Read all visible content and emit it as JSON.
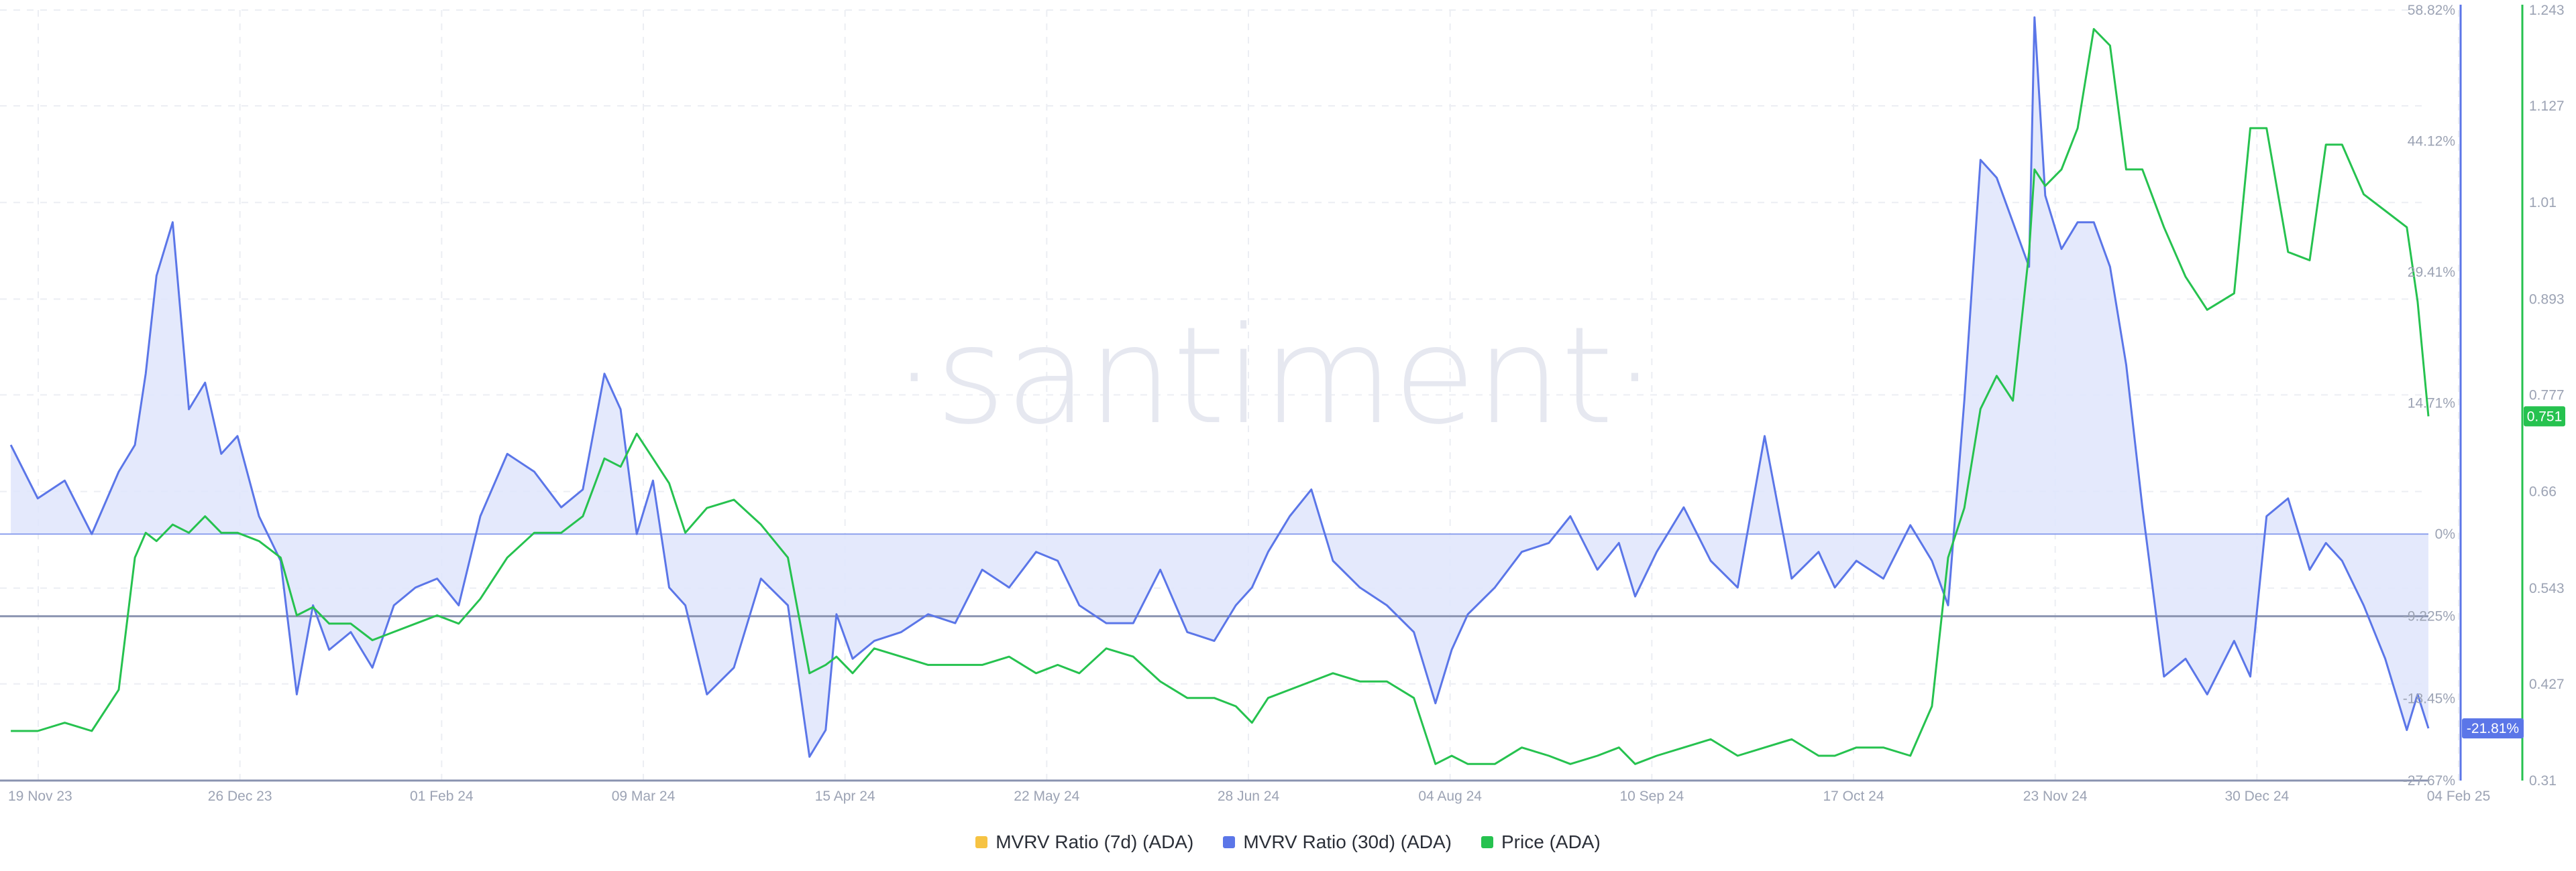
{
  "chart_data": {
    "type": "line",
    "watermark": "·santiment·",
    "x_ticks": [
      "19 Nov 23",
      "26 Dec 23",
      "01 Feb 24",
      "09 Mar 24",
      "15 Apr 24",
      "22 May 24",
      "28 Jun 24",
      "04 Aug 24",
      "10 Sep 24",
      "17 Oct 24",
      "23 Nov 24",
      "30 Dec 24",
      "04 Feb 25"
    ],
    "y_left": {
      "unit": "%",
      "ylim": [
        -27.67,
        58.82
      ],
      "ticks": [
        "58.82%",
        "44.12%",
        "29.41%",
        "14.71%",
        "0%",
        "-9.225%",
        "-18.45%",
        "-27.67%"
      ],
      "reference_lines": [
        -9.225,
        -27.67
      ]
    },
    "y_right": {
      "ylim": [
        0.31,
        1.243
      ],
      "ticks": [
        "1.243",
        "1.127",
        "1.01",
        "0.893",
        "0.777",
        "0.66",
        "0.543",
        "0.427",
        "0.31"
      ]
    },
    "badges": {
      "mvrv_current": "-21.81%",
      "price_current": "0.751"
    },
    "colors": {
      "mvrv7d": "#f6c343",
      "mvrv30d": "#5b76e8",
      "mvrv30d_fill": "#dfe5fb",
      "price": "#26c24f"
    },
    "grid": "dashed",
    "legend_position": "bottom-center",
    "series": [
      {
        "name": "MVRV Ratio (7d) (ADA)",
        "axis": "left",
        "values": []
      },
      {
        "name": "MVRV Ratio (30d) (ADA)",
        "axis": "left",
        "dates": [
          "2023-11-14",
          "2023-11-19",
          "2023-11-24",
          "2023-11-29",
          "2023-12-04",
          "2023-12-07",
          "2023-12-09",
          "2023-12-11",
          "2023-12-14",
          "2023-12-17",
          "2023-12-20",
          "2023-12-23",
          "2023-12-26",
          "2023-12-30",
          "2024-01-03",
          "2024-01-06",
          "2024-01-09",
          "2024-01-12",
          "2024-01-16",
          "2024-01-20",
          "2024-01-24",
          "2024-01-28",
          "2024-02-01",
          "2024-02-05",
          "2024-02-09",
          "2024-02-14",
          "2024-02-19",
          "2024-02-24",
          "2024-02-28",
          "2024-03-03",
          "2024-03-06",
          "2024-03-09",
          "2024-03-12",
          "2024-03-15",
          "2024-03-18",
          "2024-03-22",
          "2024-03-27",
          "2024-04-01",
          "2024-04-06",
          "2024-04-10",
          "2024-04-13",
          "2024-04-15",
          "2024-04-18",
          "2024-04-22",
          "2024-04-27",
          "2024-05-02",
          "2024-05-07",
          "2024-05-12",
          "2024-05-17",
          "2024-05-22",
          "2024-05-26",
          "2024-05-30",
          "2024-06-04",
          "2024-06-09",
          "2024-06-14",
          "2024-06-19",
          "2024-06-24",
          "2024-06-28",
          "2024-07-01",
          "2024-07-04",
          "2024-07-08",
          "2024-07-12",
          "2024-07-16",
          "2024-07-21",
          "2024-07-26",
          "2024-07-31",
          "2024-08-04",
          "2024-08-07",
          "2024-08-10",
          "2024-08-15",
          "2024-08-20",
          "2024-08-25",
          "2024-08-29",
          "2024-09-03",
          "2024-09-07",
          "2024-09-10",
          "2024-09-14",
          "2024-09-19",
          "2024-09-24",
          "2024-09-29",
          "2024-10-04",
          "2024-10-09",
          "2024-10-14",
          "2024-10-17",
          "2024-10-21",
          "2024-10-26",
          "2024-10-31",
          "2024-11-04",
          "2024-11-07",
          "2024-11-10",
          "2024-11-13",
          "2024-11-16",
          "2024-11-19",
          "2024-11-22",
          "2024-11-23",
          "2024-11-25",
          "2024-11-28",
          "2024-12-01",
          "2024-12-04",
          "2024-12-07",
          "2024-12-10",
          "2024-12-13",
          "2024-12-17",
          "2024-12-21",
          "2024-12-25",
          "2024-12-30",
          "2025-01-02",
          "2025-01-05",
          "2025-01-09",
          "2025-01-13",
          "2025-01-16",
          "2025-01-19",
          "2025-01-23",
          "2025-01-27",
          "2025-01-31",
          "2025-02-02",
          "2025-02-04"
        ],
        "values": [
          10,
          4,
          6,
          0,
          7,
          10,
          18,
          29,
          35,
          14,
          17,
          9,
          11,
          2,
          -3,
          -18,
          -8,
          -13,
          -11,
          -15,
          -8,
          -6,
          -5,
          -8,
          2,
          9,
          7,
          3,
          5,
          18,
          14,
          0,
          6,
          -6,
          -8,
          -18,
          -15,
          -5,
          -8,
          -25,
          -22,
          -9,
          -14,
          -12,
          -11,
          -9,
          -10,
          -4,
          -6,
          -2,
          -3,
          -8,
          -10,
          -10,
          -4,
          -11,
          -12,
          -8,
          -6,
          -2,
          2,
          5,
          -3,
          -6,
          -8,
          -11,
          -19,
          -13,
          -9,
          -6,
          -2,
          -1,
          2,
          -4,
          -1,
          -7,
          -2,
          3,
          -3,
          -6,
          11,
          -5,
          -2,
          -6,
          -3,
          -5,
          1,
          -3,
          -8,
          15,
          42,
          40,
          35,
          30,
          58,
          38,
          32,
          35,
          35,
          30,
          19,
          3,
          -16,
          -14,
          -18,
          -12,
          -16,
          2,
          4,
          -4,
          -1,
          -3,
          -8,
          -14,
          -22,
          -18,
          -21.81
        ],
        "markers": {
          "high": "58.82%",
          "low": "-27.67%"
        }
      },
      {
        "name": "Price (ADA)",
        "axis": "right",
        "dates": [
          "2023-11-14",
          "2023-11-19",
          "2023-11-24",
          "2023-11-29",
          "2023-12-04",
          "2023-12-07",
          "2023-12-09",
          "2023-12-11",
          "2023-12-14",
          "2023-12-17",
          "2023-12-20",
          "2023-12-23",
          "2023-12-26",
          "2023-12-30",
          "2024-01-03",
          "2024-01-06",
          "2024-01-09",
          "2024-01-12",
          "2024-01-16",
          "2024-01-20",
          "2024-01-24",
          "2024-01-28",
          "2024-02-01",
          "2024-02-05",
          "2024-02-09",
          "2024-02-14",
          "2024-02-19",
          "2024-02-24",
          "2024-02-28",
          "2024-03-03",
          "2024-03-06",
          "2024-03-09",
          "2024-03-12",
          "2024-03-15",
          "2024-03-18",
          "2024-03-22",
          "2024-03-27",
          "2024-04-01",
          "2024-04-06",
          "2024-04-10",
          "2024-04-13",
          "2024-04-15",
          "2024-04-18",
          "2024-04-22",
          "2024-04-27",
          "2024-05-02",
          "2024-05-07",
          "2024-05-12",
          "2024-05-17",
          "2024-05-22",
          "2024-05-26",
          "2024-05-30",
          "2024-06-04",
          "2024-06-09",
          "2024-06-14",
          "2024-06-19",
          "2024-06-24",
          "2024-06-28",
          "2024-07-01",
          "2024-07-04",
          "2024-07-08",
          "2024-07-12",
          "2024-07-16",
          "2024-07-21",
          "2024-07-26",
          "2024-07-31",
          "2024-08-04",
          "2024-08-07",
          "2024-08-10",
          "2024-08-15",
          "2024-08-20",
          "2024-08-25",
          "2024-08-29",
          "2024-09-03",
          "2024-09-07",
          "2024-09-10",
          "2024-09-14",
          "2024-09-19",
          "2024-09-24",
          "2024-09-29",
          "2024-10-04",
          "2024-10-09",
          "2024-10-14",
          "2024-10-17",
          "2024-10-21",
          "2024-10-26",
          "2024-10-31",
          "2024-11-04",
          "2024-11-07",
          "2024-11-10",
          "2024-11-13",
          "2024-11-16",
          "2024-11-19",
          "2024-11-22",
          "2024-11-23",
          "2024-11-25",
          "2024-11-28",
          "2024-12-01",
          "2024-12-04",
          "2024-12-07",
          "2024-12-10",
          "2024-12-13",
          "2024-12-17",
          "2024-12-21",
          "2024-12-25",
          "2024-12-30",
          "2025-01-02",
          "2025-01-05",
          "2025-01-09",
          "2025-01-13",
          "2025-01-16",
          "2025-01-19",
          "2025-01-23",
          "2025-01-27",
          "2025-01-31",
          "2025-02-02",
          "2025-02-04"
        ],
        "values": [
          0.37,
          0.37,
          0.38,
          0.37,
          0.42,
          0.58,
          0.61,
          0.6,
          0.62,
          0.61,
          0.63,
          0.61,
          0.61,
          0.6,
          0.58,
          0.51,
          0.52,
          0.5,
          0.5,
          0.48,
          0.49,
          0.5,
          0.51,
          0.5,
          0.53,
          0.58,
          0.61,
          0.61,
          0.63,
          0.7,
          0.69,
          0.73,
          0.7,
          0.67,
          0.61,
          0.64,
          0.65,
          0.62,
          0.58,
          0.44,
          0.45,
          0.46,
          0.44,
          0.47,
          0.46,
          0.45,
          0.45,
          0.45,
          0.46,
          0.44,
          0.45,
          0.44,
          0.47,
          0.46,
          0.43,
          0.41,
          0.41,
          0.4,
          0.38,
          0.41,
          0.42,
          0.43,
          0.44,
          0.43,
          0.43,
          0.41,
          0.33,
          0.34,
          0.33,
          0.33,
          0.35,
          0.34,
          0.33,
          0.34,
          0.35,
          0.33,
          0.34,
          0.35,
          0.36,
          0.34,
          0.35,
          0.36,
          0.34,
          0.34,
          0.35,
          0.35,
          0.34,
          0.4,
          0.58,
          0.64,
          0.76,
          0.8,
          0.77,
          0.95,
          1.05,
          1.03,
          1.05,
          1.1,
          1.22,
          1.2,
          1.05,
          1.05,
          0.98,
          0.92,
          0.88,
          0.9,
          1.1,
          1.1,
          0.95,
          0.94,
          1.08,
          1.08,
          1.02,
          1.0,
          0.98,
          0.89,
          0.751
        ]
      }
    ]
  }
}
